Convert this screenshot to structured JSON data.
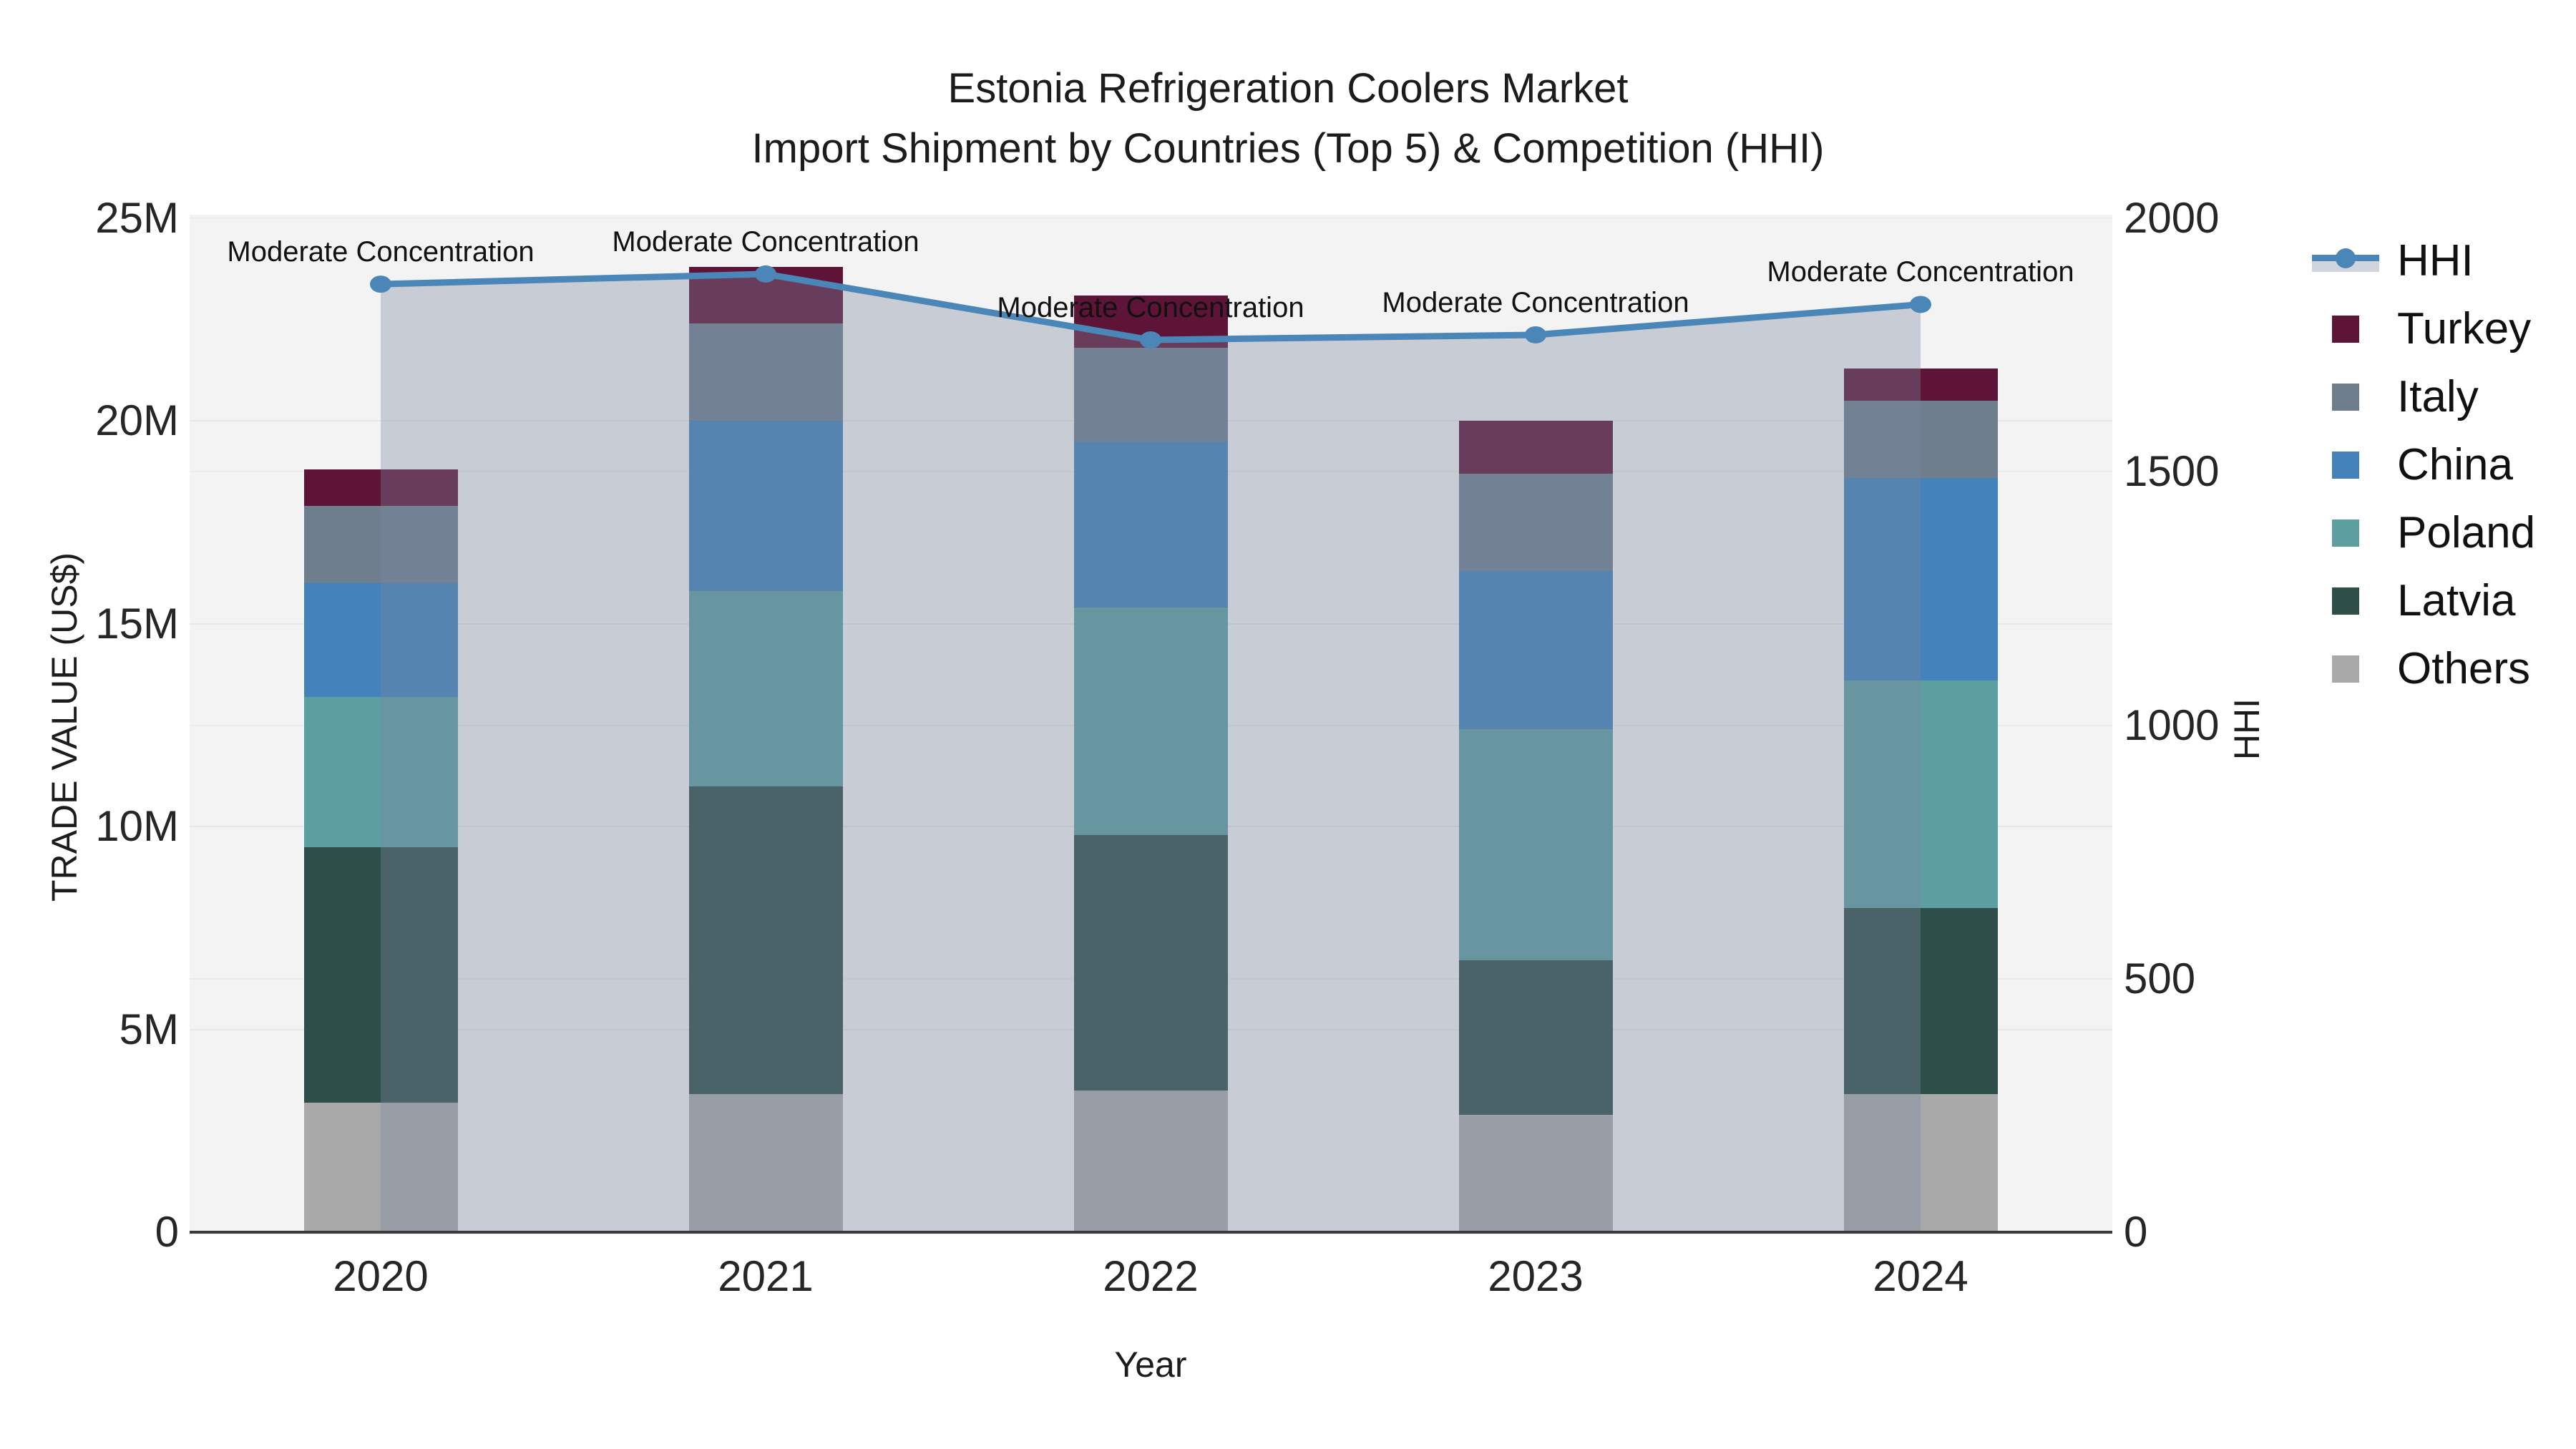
{
  "title": {
    "line1": "Estonia Refrigeration Coolers Market",
    "line2": "Import Shipment by Countries (Top 5) & Competition (HHI)"
  },
  "axes": {
    "left_title": "TRADE VALUE (US$)",
    "right_title": "HHI",
    "x_title": "Year"
  },
  "legend": {
    "items": [
      {
        "label": "HHI",
        "type": "line"
      },
      {
        "label": "Turkey",
        "type": "swatch"
      },
      {
        "label": "Italy",
        "type": "swatch"
      },
      {
        "label": "China",
        "type": "swatch"
      },
      {
        "label": "Poland",
        "type": "swatch"
      },
      {
        "label": "Latvia",
        "type": "swatch"
      },
      {
        "label": "Others",
        "type": "swatch"
      }
    ]
  },
  "annotation_text": "Moderate Concentration",
  "colors": {
    "Turkey": "#5e1436",
    "Italy": "#6e7e8c",
    "China": "#4382ba",
    "Poland": "#5d9fa0",
    "Latvia": "#2e4f49",
    "Others": "#a9a9a9",
    "hhi_line": "#4a86b8",
    "hhi_fill": "rgba(122,135,160,0.36)",
    "legend_fill_band": "#cfd4dd",
    "plot_bg": "#f3f3f3",
    "gridline": "#e6e7e9",
    "axis_line": "#3a3a3a"
  },
  "chart_data": {
    "type": "bar",
    "subtype": "stacked-bar-with-line",
    "title": "Estonia Refrigeration Coolers Market — Import Shipment by Countries (Top 5) & Competition (HHI)",
    "categories": [
      "2020",
      "2021",
      "2022",
      "2023",
      "2024"
    ],
    "bar_value_unit": "million US$",
    "stack_order_bottom_to_top": [
      "Others",
      "Latvia",
      "Poland",
      "China",
      "Italy",
      "Turkey"
    ],
    "series": [
      {
        "name": "Others",
        "values": [
          3.2,
          3.4,
          3.5,
          2.9,
          3.4
        ]
      },
      {
        "name": "Latvia",
        "values": [
          6.3,
          7.6,
          6.3,
          3.8,
          4.6
        ]
      },
      {
        "name": "Poland",
        "values": [
          3.7,
          4.8,
          5.6,
          5.7,
          5.6
        ]
      },
      {
        "name": "China",
        "values": [
          2.8,
          4.2,
          4.1,
          3.9,
          5.0
        ]
      },
      {
        "name": "Italy",
        "values": [
          1.9,
          2.4,
          2.3,
          2.4,
          1.9
        ]
      },
      {
        "name": "Turkey",
        "values": [
          0.9,
          1.4,
          1.3,
          1.3,
          0.8
        ]
      }
    ],
    "bar_totals": [
      18.8,
      23.8,
      23.1,
      20.0,
      21.3
    ],
    "line_series": {
      "name": "HHI",
      "values": [
        1870,
        1890,
        1760,
        1770,
        1830
      ],
      "axis": "right",
      "has_area_fill": true,
      "annotations": [
        "Moderate Concentration",
        "Moderate Concentration",
        "Moderate Concentration",
        "Moderate Concentration",
        "Moderate Concentration"
      ]
    },
    "xlabel": "Year",
    "ylabel_left": "TRADE VALUE (US$)",
    "ylabel_right": "HHI",
    "ylim_left": [
      0,
      25000000
    ],
    "ylim_right": [
      0,
      2000
    ],
    "left_ticks": [
      "0",
      "5M",
      "10M",
      "15M",
      "20M",
      "25M"
    ],
    "right_ticks": [
      "0",
      "500",
      "1000",
      "1500",
      "2000"
    ],
    "grid": true,
    "legend_position": "right"
  }
}
